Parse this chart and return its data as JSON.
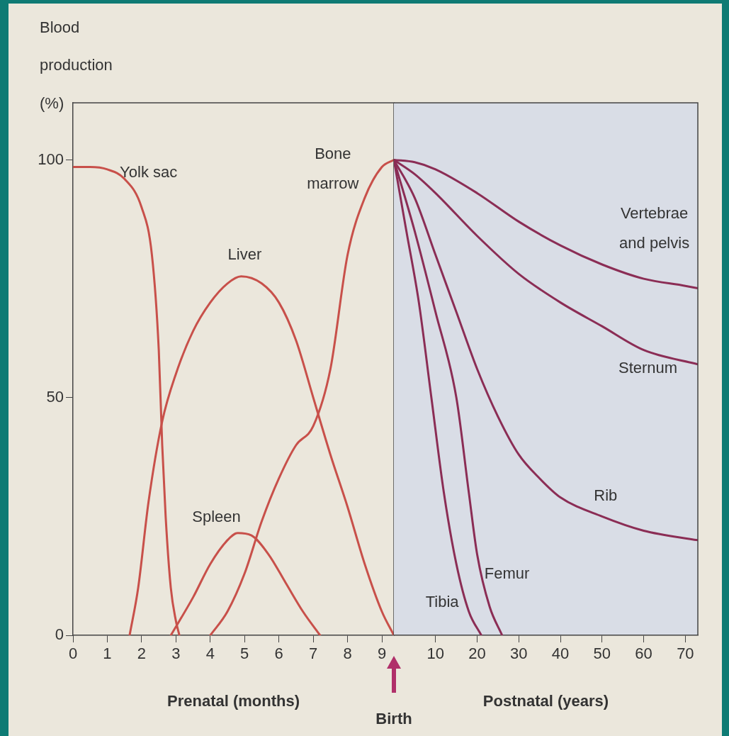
{
  "chart_data": [
    {
      "type": "line",
      "xlabel": "Prenatal (months)",
      "ylabel": "Blood production (%)",
      "xlim": [
        0,
        9.35
      ],
      "xticks": [
        0,
        1,
        2,
        3,
        4,
        5,
        6,
        7,
        8,
        9
      ],
      "ylim": [
        0,
        112
      ],
      "yticks": [
        0,
        50,
        100
      ],
      "grid": false,
      "legend": false,
      "marker": "none",
      "line_style": "solid",
      "annotations": [
        "Birth"
      ],
      "series": [
        {
          "name": "Yolk sac",
          "color": "#c8504a",
          "x": [
            0,
            0.5,
            1,
            1.5,
            2,
            2.3,
            2.5,
            2.6,
            2.7,
            2.85,
            3,
            3.1
          ],
          "values": [
            98.5,
            98.5,
            98,
            96,
            90,
            80,
            60,
            40,
            25,
            10,
            3,
            0
          ]
        },
        {
          "name": "Liver",
          "color": "#c8504a",
          "x": [
            1.65,
            1.9,
            2.2,
            2.6,
            3,
            3.5,
            4,
            4.5,
            4.9,
            5.5,
            6,
            6.5,
            7,
            7.5,
            8,
            8.5,
            9,
            9.35
          ],
          "values": [
            0,
            10,
            28,
            45,
            55,
            64,
            70,
            74,
            75.5,
            74,
            70,
            62,
            50,
            38,
            27,
            15,
            5,
            0
          ]
        },
        {
          "name": "Bone marrow",
          "color": "#c8504a",
          "x": [
            4,
            4.5,
            5,
            5.5,
            6,
            6.5,
            7,
            7.5,
            8,
            8.5,
            9,
            9.35
          ],
          "values": [
            0,
            5,
            13,
            24,
            33,
            40,
            44,
            56,
            80,
            92,
            98.5,
            100
          ]
        },
        {
          "name": "Spleen",
          "color": "#c8504a",
          "x": [
            2.85,
            3.5,
            4,
            4.5,
            4.8,
            5.2,
            5.7,
            6.2,
            6.7,
            7.2
          ],
          "values": [
            0,
            8,
            15,
            20,
            21.5,
            21,
            17,
            11,
            5,
            0
          ]
        }
      ]
    },
    {
      "type": "line",
      "xlabel": "Postnatal (years)",
      "xlim": [
        0,
        73
      ],
      "xticks": [
        10,
        20,
        30,
        40,
        50,
        60,
        70
      ],
      "ylim": [
        0,
        112
      ],
      "yticks": [
        0,
        50,
        100
      ],
      "tick_labels": "x",
      "grid": false,
      "legend": false,
      "marker": "none",
      "line_style": "solid",
      "series": [
        {
          "name": "Vertebrae and pelvis",
          "color": "#8b2d55",
          "x": [
            0,
            5,
            10,
            20,
            30,
            40,
            50,
            60,
            70,
            73
          ],
          "values": [
            100,
            99.5,
            98,
            93,
            87,
            82,
            78,
            75,
            73.5,
            73
          ]
        },
        {
          "name": "Sternum",
          "color": "#8b2d55",
          "x": [
            0,
            5,
            10,
            20,
            30,
            40,
            50,
            60,
            73
          ],
          "values": [
            100,
            97,
            93,
            84,
            76,
            70,
            65,
            60,
            57
          ]
        },
        {
          "name": "Rib",
          "color": "#8b2d55",
          "x": [
            0,
            5,
            10,
            15,
            20,
            25,
            30,
            35,
            40,
            50,
            60,
            73
          ],
          "values": [
            100,
            92,
            80,
            68,
            56,
            46,
            38,
            33,
            29,
            25,
            22,
            20
          ]
        },
        {
          "name": "Femur",
          "color": "#8b2d55",
          "x": [
            0,
            5,
            10,
            15,
            18,
            20,
            23,
            26
          ],
          "values": [
            100,
            85,
            68,
            50,
            30,
            17,
            6,
            0
          ]
        },
        {
          "name": "Tibia",
          "color": "#8b2d55",
          "x": [
            0,
            3,
            6,
            9,
            12,
            15,
            18,
            21
          ],
          "values": [
            100,
            85,
            70,
            50,
            30,
            15,
            5,
            0
          ]
        }
      ]
    }
  ]
}
